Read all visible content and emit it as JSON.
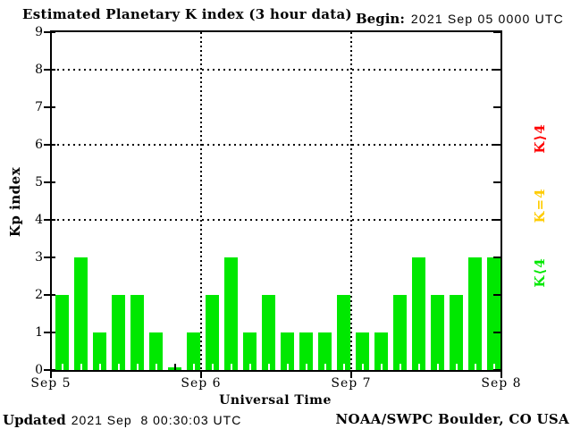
{
  "title": "Estimated Planetary K index (3 hour data)",
  "begin": {
    "label": "Begin:",
    "value": "2021 Sep 05 0000 UTC"
  },
  "y_axis": {
    "label": "Kp index",
    "ticks": [
      0,
      1,
      2,
      3,
      4,
      5,
      6,
      7,
      8,
      9
    ],
    "max": 9,
    "gridlines": [
      4,
      6,
      8
    ]
  },
  "x_axis": {
    "label": "Universal Time",
    "day_labels": [
      "Sep 5",
      "Sep 6",
      "Sep 7",
      "Sep 8"
    ]
  },
  "legend": [
    {
      "label": "K⟩4",
      "color": "#ff0000"
    },
    {
      "label": "K=4",
      "color": "#ffcc00"
    },
    {
      "label": "K⟨4",
      "color": "#00e800"
    }
  ],
  "footer": {
    "updated_label": "Updated",
    "updated_value": "2021 Sep  8 00:30:03 UTC",
    "source": "NOAA/SWPC Boulder, CO USA"
  },
  "chart_data": {
    "type": "bar",
    "title": "Estimated Planetary K index (3 hour data)",
    "begin_utc": "2021 Sep 05 0000 UTC",
    "interval_hours": 3,
    "days": [
      "Sep 5",
      "Sep 6",
      "Sep 7"
    ],
    "values": [
      2,
      3,
      1,
      2,
      2,
      1,
      0,
      1,
      2,
      3,
      1,
      2,
      1,
      1,
      1,
      2,
      1,
      1,
      2,
      3,
      2,
      2,
      3,
      3
    ],
    "xlabel": "Universal Time",
    "ylabel": "Kp index",
    "ylim": [
      0,
      9
    ],
    "grid_y": [
      4,
      6,
      8
    ],
    "grid_x_days": [
      "Sep 6",
      "Sep 7"
    ],
    "bar_colors": {
      "lt4": "#00e800",
      "eq4": "#ffcc00",
      "gt4": "#ff0000"
    },
    "legend_position": "right"
  }
}
